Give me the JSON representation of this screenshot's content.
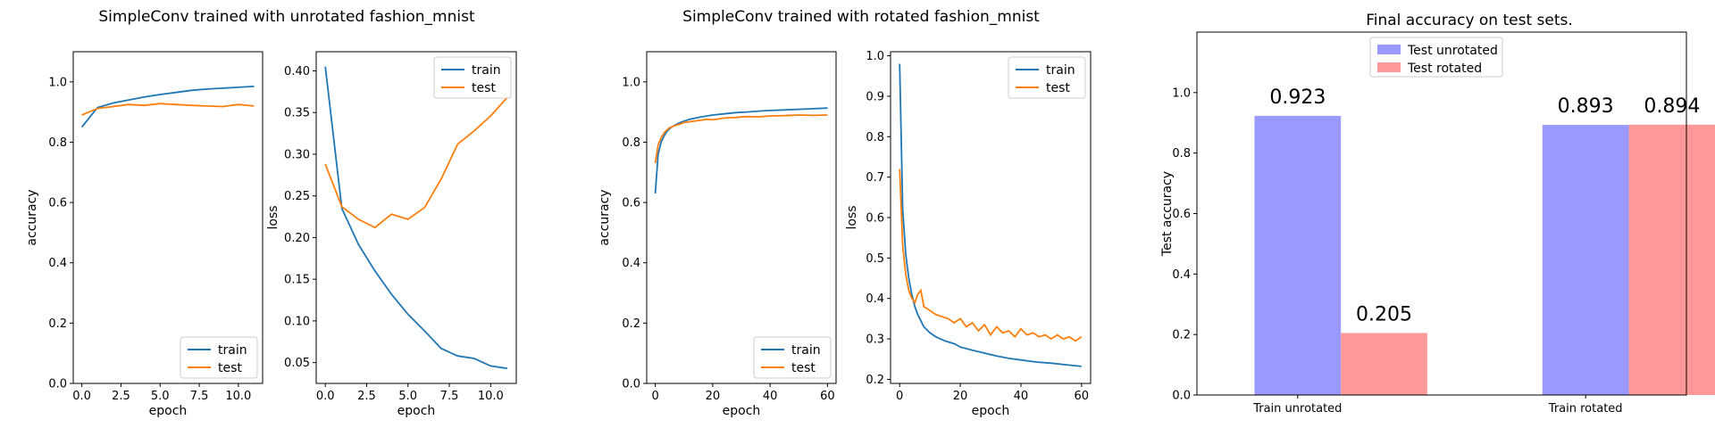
{
  "colors": {
    "train": "#1f77b4",
    "test": "#ff7f0e",
    "unrotated_bar": "#9999ff",
    "rotated_bar": "#ff9999"
  },
  "figure_titles": {
    "left": "SimpleConv trained with unrotated fashion_mnist",
    "middle": "SimpleConv trained with rotated fashion_mnist",
    "right": "Final accuracy on test sets."
  },
  "chart_data": [
    {
      "id": "unrot-acc",
      "type": "line",
      "xlabel": "epoch",
      "ylabel": "accuracy",
      "xlim": [
        -0.55,
        11.55
      ],
      "ylim": [
        0.0,
        1.1
      ],
      "xticks": [
        0.0,
        2.5,
        5.0,
        7.5,
        10.0
      ],
      "xticklabels": [
        "0.0",
        "2.5",
        "5.0",
        "7.5",
        "10.0"
      ],
      "yticks": [
        0.0,
        0.2,
        0.4,
        0.6,
        0.8,
        1.0
      ],
      "yticklabels": [
        "0.0",
        "0.2",
        "0.4",
        "0.6",
        "0.8",
        "1.0"
      ],
      "legend_loc": "lower-right",
      "series": [
        {
          "name": "train",
          "color_key": "train",
          "x": [
            0,
            1,
            2,
            3,
            4,
            5,
            6,
            7,
            8,
            9,
            10,
            11
          ],
          "y": [
            0.85,
            0.915,
            0.93,
            0.94,
            0.95,
            0.958,
            0.965,
            0.972,
            0.976,
            0.979,
            0.982,
            0.985
          ]
        },
        {
          "name": "test",
          "color_key": "test",
          "x": [
            0,
            1,
            2,
            3,
            4,
            5,
            6,
            7,
            8,
            9,
            10,
            11
          ],
          "y": [
            0.89,
            0.912,
            0.918,
            0.925,
            0.922,
            0.928,
            0.925,
            0.922,
            0.92,
            0.918,
            0.925,
            0.92
          ]
        }
      ]
    },
    {
      "id": "unrot-loss",
      "type": "line",
      "xlabel": "epoch",
      "ylabel": "loss",
      "xlim": [
        -0.55,
        11.55
      ],
      "ylim": [
        0.025,
        0.423
      ],
      "xticks": [
        0.0,
        2.5,
        5.0,
        7.5,
        10.0
      ],
      "xticklabels": [
        "0.0",
        "2.5",
        "5.0",
        "7.5",
        "10.0"
      ],
      "yticks": [
        0.05,
        0.1,
        0.15,
        0.2,
        0.25,
        0.3,
        0.35,
        0.4
      ],
      "yticklabels": [
        "0.05",
        "0.10",
        "0.15",
        "0.20",
        "0.25",
        "0.30",
        "0.35",
        "0.40"
      ],
      "legend_loc": "upper-right",
      "series": [
        {
          "name": "train",
          "color_key": "train",
          "x": [
            0,
            1,
            2,
            3,
            4,
            5,
            6,
            7,
            8,
            9,
            10,
            11
          ],
          "y": [
            0.405,
            0.235,
            0.192,
            0.16,
            0.132,
            0.108,
            0.088,
            0.067,
            0.058,
            0.055,
            0.046,
            0.043
          ]
        },
        {
          "name": "test",
          "color_key": "test",
          "x": [
            0,
            1,
            2,
            3,
            4,
            5,
            6,
            7,
            8,
            9,
            10,
            11
          ],
          "y": [
            0.288,
            0.237,
            0.222,
            0.212,
            0.228,
            0.222,
            0.236,
            0.27,
            0.312,
            0.328,
            0.346,
            0.368
          ]
        }
      ]
    },
    {
      "id": "rot-acc",
      "type": "line",
      "xlabel": "epoch",
      "ylabel": "accuracy",
      "xlim": [
        -3,
        63
      ],
      "ylim": [
        0.0,
        1.1
      ],
      "xticks": [
        0,
        20,
        40,
        60
      ],
      "xticklabels": [
        "0",
        "20",
        "40",
        "60"
      ],
      "yticks": [
        0.0,
        0.2,
        0.4,
        0.6,
        0.8,
        1.0
      ],
      "yticklabels": [
        "0.0",
        "0.2",
        "0.4",
        "0.6",
        "0.8",
        "1.0"
      ],
      "legend_loc": "lower-right",
      "series": [
        {
          "name": "train",
          "color_key": "train",
          "x": [
            0,
            1,
            2,
            3,
            4,
            5,
            6,
            8,
            10,
            12,
            15,
            18,
            20,
            24,
            28,
            32,
            36,
            40,
            45,
            50,
            55,
            60
          ],
          "y": [
            0.63,
            0.76,
            0.8,
            0.82,
            0.835,
            0.845,
            0.852,
            0.862,
            0.87,
            0.876,
            0.882,
            0.887,
            0.89,
            0.894,
            0.898,
            0.9,
            0.903,
            0.905,
            0.907,
            0.909,
            0.911,
            0.913
          ]
        },
        {
          "name": "test",
          "color_key": "test",
          "x": [
            0,
            1,
            2,
            3,
            4,
            5,
            6,
            8,
            10,
            12,
            15,
            18,
            20,
            24,
            28,
            32,
            36,
            40,
            45,
            50,
            55,
            60
          ],
          "y": [
            0.73,
            0.79,
            0.815,
            0.83,
            0.84,
            0.848,
            0.852,
            0.858,
            0.865,
            0.868,
            0.872,
            0.876,
            0.874,
            0.88,
            0.882,
            0.885,
            0.884,
            0.887,
            0.888,
            0.89,
            0.889,
            0.89
          ]
        }
      ]
    },
    {
      "id": "rot-loss",
      "type": "line",
      "xlabel": "epoch",
      "ylabel": "loss",
      "xlim": [
        -3,
        63
      ],
      "ylim": [
        0.19,
        1.01
      ],
      "xticks": [
        0,
        20,
        40,
        60
      ],
      "xticklabels": [
        "0",
        "20",
        "40",
        "60"
      ],
      "yticks": [
        0.2,
        0.3,
        0.4,
        0.5,
        0.6,
        0.7,
        0.8,
        0.9,
        1.0
      ],
      "yticklabels": [
        "0.2",
        "0.3",
        "0.4",
        "0.5",
        "0.6",
        "0.7",
        "0.8",
        "0.9",
        "1.0"
      ],
      "legend_loc": "upper-right",
      "series": [
        {
          "name": "train",
          "color_key": "train",
          "x": [
            0,
            1,
            2,
            3,
            4,
            5,
            6,
            7,
            8,
            10,
            12,
            15,
            18,
            20,
            24,
            28,
            32,
            36,
            40,
            45,
            50,
            55,
            60
          ],
          "y": [
            0.98,
            0.62,
            0.51,
            0.45,
            0.41,
            0.38,
            0.36,
            0.345,
            0.33,
            0.315,
            0.305,
            0.295,
            0.288,
            0.28,
            0.272,
            0.265,
            0.258,
            0.252,
            0.248,
            0.243,
            0.24,
            0.236,
            0.232
          ]
        },
        {
          "name": "test",
          "color_key": "test",
          "x": [
            0,
            1,
            2,
            3,
            4,
            5,
            6,
            7,
            8,
            10,
            12,
            14,
            16,
            18,
            20,
            22,
            24,
            26,
            28,
            30,
            32,
            34,
            36,
            38,
            40,
            42,
            44,
            46,
            48,
            50,
            52,
            54,
            56,
            58,
            60
          ],
          "y": [
            0.72,
            0.53,
            0.46,
            0.42,
            0.4,
            0.39,
            0.41,
            0.42,
            0.38,
            0.37,
            0.36,
            0.355,
            0.35,
            0.34,
            0.35,
            0.33,
            0.34,
            0.32,
            0.335,
            0.31,
            0.33,
            0.315,
            0.32,
            0.305,
            0.325,
            0.31,
            0.315,
            0.305,
            0.31,
            0.3,
            0.31,
            0.3,
            0.305,
            0.295,
            0.305
          ]
        }
      ]
    },
    {
      "id": "final-acc",
      "type": "bar",
      "ylabel": "Test accuracy",
      "ylim": [
        0.0,
        1.2
      ],
      "yticks": [
        0.0,
        0.2,
        0.4,
        0.6,
        0.8,
        1.0
      ],
      "yticklabels": [
        "0.0",
        "0.2",
        "0.4",
        "0.6",
        "0.8",
        "1.0"
      ],
      "categories": [
        "Train unrotated",
        "Train rotated"
      ],
      "legend_loc": "upper-center",
      "series": [
        {
          "name": "Test unrotated",
          "color_key": "unrotated_bar",
          "values": [
            0.923,
            0.893
          ],
          "labels": [
            "0.923",
            "0.893"
          ]
        },
        {
          "name": "Test rotated",
          "color_key": "rotated_bar",
          "values": [
            0.205,
            0.894
          ],
          "labels": [
            "0.205",
            "0.894"
          ]
        }
      ]
    }
  ]
}
